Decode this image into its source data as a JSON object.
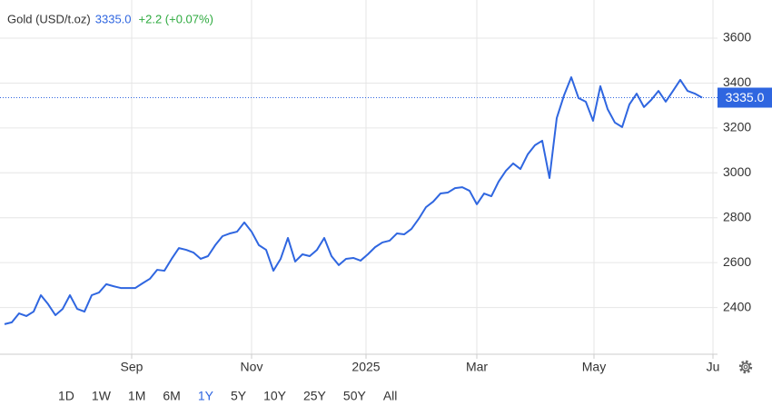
{
  "chart_data": {
    "type": "line",
    "title": "Gold (USD/t.oz)",
    "change": "+2.2 (+0.07%)",
    "last_price": {
      "value": 3335,
      "label": "3335.0"
    },
    "series": [
      {
        "name": "Gold",
        "color": "#2f66e0",
        "values": [
          2326,
          2334,
          2374,
          2362,
          2382,
          2455,
          2415,
          2366,
          2394,
          2455,
          2394,
          2382,
          2455,
          2467,
          2504,
          2495,
          2487,
          2487,
          2487,
          2508,
          2528,
          2568,
          2564,
          2617,
          2665,
          2657,
          2645,
          2617,
          2629,
          2678,
          2718,
          2730,
          2738,
          2779,
          2738,
          2678,
          2657,
          2564,
          2617,
          2710,
          2605,
          2637,
          2629,
          2657,
          2710,
          2629,
          2589,
          2617,
          2621,
          2609,
          2637,
          2669,
          2690,
          2698,
          2730,
          2726,
          2750,
          2795,
          2847,
          2872,
          2908,
          2912,
          2932,
          2936,
          2920,
          2860,
          2908,
          2896,
          2961,
          3009,
          3042,
          3017,
          3082,
          3123,
          3143,
          2977,
          3244,
          3345,
          3426,
          3333,
          3317,
          3232,
          3386,
          3284,
          3224,
          3204,
          3305,
          3353,
          3293,
          3325,
          3365,
          3317,
          3365,
          3414,
          3365,
          3353,
          3335
        ]
      }
    ],
    "xlim": [
      -0.625,
      98.125
    ],
    "xticks": [
      {
        "value": 17.5,
        "label": "Sep"
      },
      {
        "value": 34,
        "label": "Nov"
      },
      {
        "value": 49.75,
        "label": "2025"
      },
      {
        "value": 65,
        "label": "Mar"
      },
      {
        "value": 81.125,
        "label": "May"
      },
      {
        "value": 97.5,
        "label": "Ju"
      }
    ],
    "ylim": [
      2192,
      3770
    ],
    "yticks": [
      2400,
      2600,
      2800,
      3000,
      3200,
      3400,
      3600
    ],
    "grid": true,
    "range_buttons": [
      "1D",
      "1W",
      "1M",
      "6M",
      "1Y",
      "5Y",
      "10Y",
      "25Y",
      "50Y",
      "All"
    ],
    "selected_range": "1Y"
  }
}
